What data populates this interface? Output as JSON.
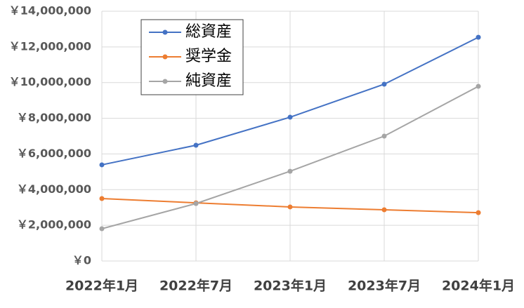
{
  "chart_data": {
    "type": "line",
    "categories": [
      "2022年1月",
      "2022年7月",
      "2023年1月",
      "2023年7月",
      "2024年1月"
    ],
    "series": [
      {
        "name": "総資産",
        "color": "#4472c4",
        "values": [
          5390000,
          6490000,
          8060000,
          9910000,
          12540000
        ]
      },
      {
        "name": "奨学金",
        "color": "#ed7d31",
        "values": [
          3500000,
          3260000,
          3030000,
          2870000,
          2710000
        ]
      },
      {
        "name": "純資産",
        "color": "#a5a5a5",
        "values": [
          1810000,
          3220000,
          5030000,
          7000000,
          9790000
        ]
      }
    ],
    "ylim": [
      0,
      14000000
    ],
    "yticks": [
      {
        "value": 0,
        "label": "￥0"
      },
      {
        "value": 2000000,
        "label": "￥2,000,000"
      },
      {
        "value": 4000000,
        "label": "￥4,000,000"
      },
      {
        "value": 6000000,
        "label": "￥6,000,000"
      },
      {
        "value": 8000000,
        "label": "￥8,000,000"
      },
      {
        "value": 10000000,
        "label": "￥10,000,000"
      },
      {
        "value": 12000000,
        "label": "￥12,000,000"
      },
      {
        "value": 14000000,
        "label": "￥14,000,000"
      }
    ],
    "grid": true
  }
}
